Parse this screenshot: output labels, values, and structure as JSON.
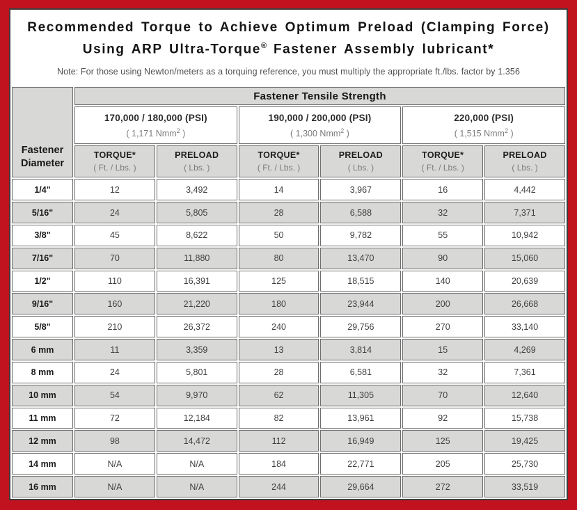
{
  "page": {
    "title_line1": "Recommended Torque to Achieve Optimum Preload (Clamping Force)",
    "title_line2_pre": "Using ARP Ultra-Torque",
    "title_line2_sup": "®",
    "title_line2_post": " Fastener Assembly lubricant*",
    "note": "Note: For those using Newton/meters as a torquing reference, you must multiply the appropriate ft./lbs. factor by 1.356"
  },
  "table": {
    "corner_header": "Fastener Diameter",
    "main_header": "Fastener Tensile Strength",
    "groups": [
      {
        "psi": "170,000 / 180,000 (PSI)",
        "nmm_pre": "( 1,171 Nmm",
        "nmm_sup": "2",
        "nmm_post": " )"
      },
      {
        "psi": "190,000 / 200,000 (PSI)",
        "nmm_pre": "( 1,300 Nmm",
        "nmm_sup": "2",
        "nmm_post": " )"
      },
      {
        "psi": "220,000 (PSI)",
        "nmm_pre": "( 1,515 Nmm",
        "nmm_sup": "2",
        "nmm_post": " )"
      }
    ],
    "sub_headers": {
      "torque_label": "TORQUE*",
      "torque_unit": "( Ft. / Lbs. )",
      "preload_label": "PRELOAD",
      "preload_unit": "( Lbs. )"
    },
    "rows": [
      {
        "diameter": "1/4\"",
        "values": [
          "12",
          "3,492",
          "14",
          "3,967",
          "16",
          "4,442"
        ]
      },
      {
        "diameter": "5/16\"",
        "values": [
          "24",
          "5,805",
          "28",
          "6,588",
          "32",
          "7,371"
        ]
      },
      {
        "diameter": "3/8\"",
        "values": [
          "45",
          "8,622",
          "50",
          "9,782",
          "55",
          "10,942"
        ]
      },
      {
        "diameter": "7/16\"",
        "values": [
          "70",
          "11,880",
          "80",
          "13,470",
          "90",
          "15,060"
        ]
      },
      {
        "diameter": "1/2\"",
        "values": [
          "110",
          "16,391",
          "125",
          "18,515",
          "140",
          "20,639"
        ]
      },
      {
        "diameter": "9/16\"",
        "values": [
          "160",
          "21,220",
          "180",
          "23,944",
          "200",
          "26,668"
        ]
      },
      {
        "diameter": "5/8\"",
        "values": [
          "210",
          "26,372",
          "240",
          "29,756",
          "270",
          "33,140"
        ]
      },
      {
        "diameter": "6 mm",
        "values": [
          "11",
          "3,359",
          "13",
          "3,814",
          "15",
          "4,269"
        ]
      },
      {
        "diameter": "8 mm",
        "values": [
          "24",
          "5,801",
          "28",
          "6,581",
          "32",
          "7,361"
        ]
      },
      {
        "diameter": "10 mm",
        "values": [
          "54",
          "9,970",
          "62",
          "11,305",
          "70",
          "12,640"
        ]
      },
      {
        "diameter": "11 mm",
        "values": [
          "72",
          "12,184",
          "82",
          "13,961",
          "92",
          "15,738"
        ]
      },
      {
        "diameter": "12 mm",
        "values": [
          "98",
          "14,472",
          "112",
          "16,949",
          "125",
          "19,425"
        ]
      },
      {
        "diameter": "14 mm",
        "values": [
          "N/A",
          "N/A",
          "184",
          "22,771",
          "205",
          "25,730"
        ]
      },
      {
        "diameter": "16 mm",
        "values": [
          "N/A",
          "N/A",
          "244",
          "29,664",
          "272",
          "33,519"
        ]
      }
    ]
  },
  "colors": {
    "frame_red": "#c0121f",
    "panel_border": "#3d3d3d",
    "header_gray": "#d8d8d6",
    "cell_border": "#6e6e6e"
  }
}
